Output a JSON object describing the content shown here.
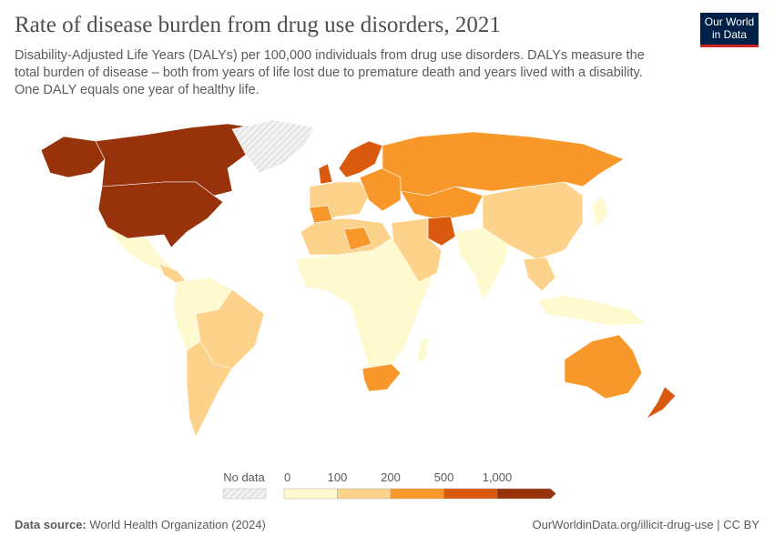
{
  "header": {
    "title": "Rate of disease burden from drug use disorders, 2021",
    "subtitle": "Disability-Adjusted Life Years (DALYs) per 100,000 individuals from drug use disorders. DALYs measure the total burden of disease – both from years of life lost due to premature death and years lived with a disability. One DALY equals one year of healthy life.",
    "logo": "Our World in Data"
  },
  "legend": {
    "no_data_label": "No data",
    "ticks": [
      "0",
      "100",
      "200",
      "500",
      "1,000"
    ],
    "bins": [
      {
        "range": "0-100",
        "color": "#fef9cf"
      },
      {
        "range": "100-200",
        "color": "#fdd38b"
      },
      {
        "range": "200-500",
        "color": "#f8982a"
      },
      {
        "range": "500-1,000",
        "color": "#d9590f"
      },
      {
        "range": ">1,000",
        "color": "#98320a"
      }
    ],
    "no_data_color": "#e8e8e8"
  },
  "footer": {
    "source_label": "Data source:",
    "source": "World Health Organization (2024)",
    "url": "OurWorldinData.org/illicit-drug-use | CC BY"
  }
}
